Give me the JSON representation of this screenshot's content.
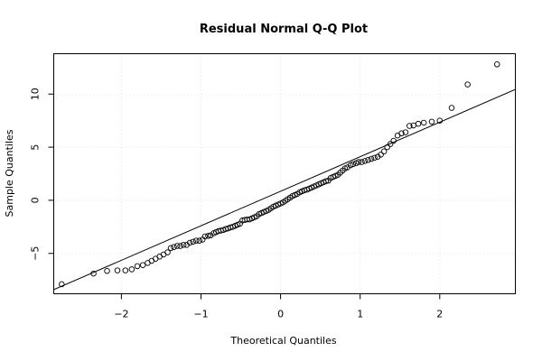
{
  "chart_data": {
    "type": "scatter",
    "title": "Residual Normal Q-Q Plot",
    "xlabel": "Theoretical Quantiles",
    "ylabel": "Sample Quantiles",
    "xlim": [
      -2.85,
      2.95
    ],
    "ylim": [
      -8.8,
      13.8
    ],
    "xticks": [
      -2,
      -1,
      0,
      1,
      2
    ],
    "yticks": [
      -5,
      0,
      5,
      10
    ],
    "grid": true,
    "legend": "none",
    "reference_line": {
      "slope": 3.25,
      "intercept": 0.85
    },
    "points": [
      [
        -2.75,
        -7.9
      ],
      [
        -2.35,
        -6.9
      ],
      [
        -2.18,
        -6.65
      ],
      [
        -2.05,
        -6.6
      ],
      [
        -1.95,
        -6.6
      ],
      [
        -1.87,
        -6.5
      ],
      [
        -1.8,
        -6.2
      ],
      [
        -1.73,
        -6.1
      ],
      [
        -1.67,
        -5.9
      ],
      [
        -1.62,
        -5.7
      ],
      [
        -1.57,
        -5.5
      ],
      [
        -1.52,
        -5.3
      ],
      [
        -1.47,
        -5.1
      ],
      [
        -1.42,
        -4.9
      ],
      [
        -1.38,
        -4.5
      ],
      [
        -1.34,
        -4.4
      ],
      [
        -1.3,
        -4.3
      ],
      [
        -1.26,
        -4.3
      ],
      [
        -1.22,
        -4.2
      ],
      [
        -1.18,
        -4.2
      ],
      [
        -1.14,
        -4.0
      ],
      [
        -1.1,
        -3.9
      ],
      [
        -1.06,
        -3.8
      ],
      [
        -1.02,
        -3.8
      ],
      [
        -0.98,
        -3.7
      ],
      [
        -0.95,
        -3.4
      ],
      [
        -0.91,
        -3.35
      ],
      [
        -0.88,
        -3.3
      ],
      [
        -0.84,
        -3.1
      ],
      [
        -0.81,
        -3.0
      ],
      [
        -0.78,
        -2.9
      ],
      [
        -0.75,
        -2.85
      ],
      [
        -0.72,
        -2.8
      ],
      [
        -0.69,
        -2.7
      ],
      [
        -0.66,
        -2.65
      ],
      [
        -0.63,
        -2.55
      ],
      [
        -0.6,
        -2.5
      ],
      [
        -0.57,
        -2.4
      ],
      [
        -0.54,
        -2.3
      ],
      [
        -0.51,
        -2.2
      ],
      [
        -0.48,
        -1.9
      ],
      [
        -0.45,
        -1.85
      ],
      [
        -0.42,
        -1.8
      ],
      [
        -0.39,
        -1.8
      ],
      [
        -0.36,
        -1.7
      ],
      [
        -0.33,
        -1.6
      ],
      [
        -0.3,
        -1.5
      ],
      [
        -0.27,
        -1.3
      ],
      [
        -0.24,
        -1.2
      ],
      [
        -0.21,
        -1.1
      ],
      [
        -0.18,
        -1.0
      ],
      [
        -0.15,
        -0.9
      ],
      [
        -0.12,
        -0.75
      ],
      [
        -0.09,
        -0.6
      ],
      [
        -0.06,
        -0.5
      ],
      [
        -0.03,
        -0.4
      ],
      [
        0.0,
        -0.3
      ],
      [
        0.03,
        -0.2
      ],
      [
        0.06,
        -0.05
      ],
      [
        0.09,
        0.1
      ],
      [
        0.12,
        0.25
      ],
      [
        0.15,
        0.4
      ],
      [
        0.18,
        0.5
      ],
      [
        0.21,
        0.6
      ],
      [
        0.24,
        0.75
      ],
      [
        0.27,
        0.85
      ],
      [
        0.3,
        0.95
      ],
      [
        0.33,
        1.0
      ],
      [
        0.36,
        1.1
      ],
      [
        0.39,
        1.2
      ],
      [
        0.42,
        1.3
      ],
      [
        0.45,
        1.4
      ],
      [
        0.48,
        1.5
      ],
      [
        0.51,
        1.6
      ],
      [
        0.54,
        1.7
      ],
      [
        0.57,
        1.8
      ],
      [
        0.6,
        1.85
      ],
      [
        0.63,
        2.1
      ],
      [
        0.66,
        2.2
      ],
      [
        0.69,
        2.3
      ],
      [
        0.72,
        2.4
      ],
      [
        0.75,
        2.6
      ],
      [
        0.78,
        2.8
      ],
      [
        0.81,
        3.0
      ],
      [
        0.84,
        3.1
      ],
      [
        0.88,
        3.3
      ],
      [
        0.91,
        3.4
      ],
      [
        0.95,
        3.5
      ],
      [
        0.98,
        3.6
      ],
      [
        1.02,
        3.6
      ],
      [
        1.06,
        3.7
      ],
      [
        1.1,
        3.8
      ],
      [
        1.14,
        3.9
      ],
      [
        1.18,
        4.0
      ],
      [
        1.22,
        4.1
      ],
      [
        1.26,
        4.3
      ],
      [
        1.3,
        4.6
      ],
      [
        1.34,
        5.0
      ],
      [
        1.38,
        5.3
      ],
      [
        1.42,
        5.6
      ],
      [
        1.47,
        6.1
      ],
      [
        1.52,
        6.3
      ],
      [
        1.57,
        6.4
      ],
      [
        1.62,
        7.0
      ],
      [
        1.67,
        7.05
      ],
      [
        1.73,
        7.2
      ],
      [
        1.8,
        7.3
      ],
      [
        1.9,
        7.4
      ],
      [
        2.0,
        7.5
      ],
      [
        2.15,
        8.7
      ],
      [
        2.35,
        10.9
      ],
      [
        2.72,
        12.8
      ]
    ]
  }
}
